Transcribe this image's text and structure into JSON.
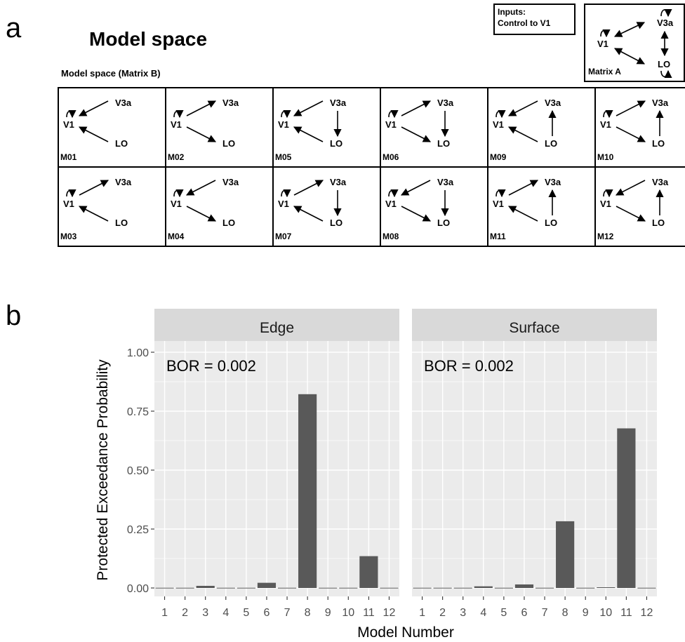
{
  "panel_a": {
    "letter": "a",
    "title": "Model space",
    "subtitle": "Model space (Matrix B)",
    "inputs_line1": "Inputs:",
    "inputs_line2": "Control to V1",
    "matrix_a_label": "Matrix A",
    "node_labels": {
      "v1": "V1",
      "v3a": "V3a",
      "lo": "LO"
    },
    "models": [
      {
        "id": "M01",
        "v1_self": true,
        "v3a_v1": "toV1",
        "lo_v1": "toV1",
        "v3a_lo": "none"
      },
      {
        "id": "M02",
        "v1_self": true,
        "v3a_v1": "fromV1",
        "lo_v1": "fromV1",
        "v3a_lo": "none"
      },
      {
        "id": "M05",
        "v1_self": true,
        "v3a_v1": "toV1",
        "lo_v1": "toV1",
        "v3a_lo": "toLO"
      },
      {
        "id": "M06",
        "v1_self": true,
        "v3a_v1": "fromV1",
        "lo_v1": "fromV1",
        "v3a_lo": "toLO"
      },
      {
        "id": "M09",
        "v1_self": true,
        "v3a_v1": "toV1",
        "lo_v1": "toV1",
        "v3a_lo": "toV3a"
      },
      {
        "id": "M10",
        "v1_self": true,
        "v3a_v1": "fromV1",
        "lo_v1": "fromV1",
        "v3a_lo": "toV3a"
      },
      {
        "id": "M03",
        "v1_self": true,
        "v3a_v1": "fromV1",
        "lo_v1": "toV1",
        "v3a_lo": "none"
      },
      {
        "id": "M04",
        "v1_self": true,
        "v3a_v1": "toV1",
        "lo_v1": "fromV1",
        "v3a_lo": "none"
      },
      {
        "id": "M07",
        "v1_self": true,
        "v3a_v1": "fromV1",
        "lo_v1": "toV1",
        "v3a_lo": "toLO"
      },
      {
        "id": "M08",
        "v1_self": true,
        "v3a_v1": "toV1",
        "lo_v1": "fromV1",
        "v3a_lo": "toLO"
      },
      {
        "id": "M11",
        "v1_self": true,
        "v3a_v1": "fromV1",
        "lo_v1": "toV1",
        "v3a_lo": "toV3a"
      },
      {
        "id": "M12",
        "v1_self": true,
        "v3a_v1": "toV1",
        "lo_v1": "fromV1",
        "v3a_lo": "toV3a"
      }
    ]
  },
  "panel_b": {
    "letter": "b",
    "ylabel": "Protected Exceedance Probability",
    "xlabel": "Model Number"
  },
  "chart_data": {
    "type": "bar",
    "categories": [
      "1",
      "2",
      "3",
      "4",
      "5",
      "6",
      "7",
      "8",
      "9",
      "10",
      "11",
      "12"
    ],
    "facets": [
      {
        "name": "Edge",
        "annotation": "BOR = 0.002",
        "values": [
          0.001,
          0.001,
          0.009,
          0.001,
          0.001,
          0.022,
          0.001,
          0.822,
          0.001,
          0.001,
          0.135,
          0.001
        ]
      },
      {
        "name": "Surface",
        "annotation": "BOR = 0.002",
        "values": [
          0.001,
          0.001,
          0.001,
          0.007,
          0.001,
          0.015,
          0.001,
          0.283,
          0.001,
          0.003,
          0.677,
          0.001
        ]
      }
    ],
    "ylim": [
      0,
      1
    ],
    "yticks": [
      "0.00",
      "0.25",
      "0.50",
      "0.75",
      "1.00"
    ],
    "bar_color": "#595959",
    "panel_bg": "#EBEBEB",
    "strip_bg": "#D9D9D9",
    "grid": true,
    "grid_color": "#FFFFFF"
  }
}
